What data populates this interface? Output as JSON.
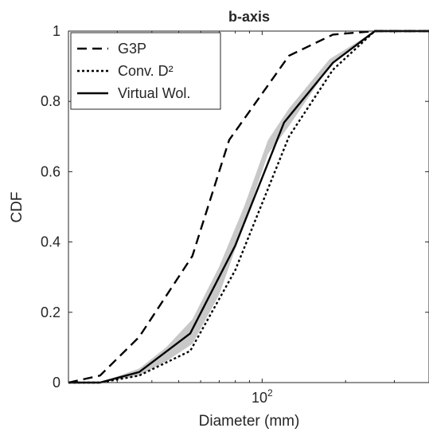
{
  "chart_data": {
    "type": "line",
    "title": "b-axis",
    "xlabel": "Diameter (mm)",
    "ylabel": "CDF",
    "xscale": "log",
    "xlim": [
      20,
      400
    ],
    "ylim": [
      0,
      1
    ],
    "x_ticks": [
      100
    ],
    "x_tick_base": "10",
    "x_tick_exp": "2",
    "y_ticks": [
      0,
      0.2,
      0.4,
      0.6,
      0.8,
      1
    ],
    "y_tick_labels": [
      "0",
      "0.2",
      "0.4",
      "0.6",
      "0.8",
      "1"
    ],
    "legend_position": "top-left",
    "grid": false,
    "band": {
      "x": [
        26,
        36,
        45,
        56,
        70,
        86,
        105,
        125,
        175,
        255,
        400
      ],
      "lower": [
        0,
        0.02,
        0.06,
        0.11,
        0.25,
        0.45,
        0.65,
        0.73,
        0.9,
        1,
        1
      ],
      "upper": [
        0,
        0.04,
        0.1,
        0.18,
        0.33,
        0.5,
        0.69,
        0.78,
        0.92,
        1,
        1
      ],
      "color": "#c8c8c8"
    },
    "series": [
      {
        "name": "G3P",
        "style": "dashed",
        "color": "#000000",
        "x": [
          20,
          26,
          36,
          56,
          76,
          125,
          180,
          255,
          400
        ],
        "y": [
          0,
          0.02,
          0.13,
          0.36,
          0.69,
          0.93,
          0.99,
          1,
          1
        ]
      },
      {
        "name": "Conv. D²",
        "style": "dotted",
        "color": "#000000",
        "x": [
          20,
          26,
          36,
          55,
          80,
          125,
          180,
          255,
          400
        ],
        "y": [
          0,
          0,
          0.02,
          0.09,
          0.32,
          0.7,
          0.89,
          1,
          1
        ]
      },
      {
        "name": "Virtual Wol.",
        "style": "solid",
        "color": "#000000",
        "x": [
          20,
          26,
          36,
          55,
          80,
          120,
          180,
          255,
          400
        ],
        "y": [
          0,
          0,
          0.03,
          0.14,
          0.39,
          0.74,
          0.91,
          1,
          1
        ]
      }
    ]
  }
}
